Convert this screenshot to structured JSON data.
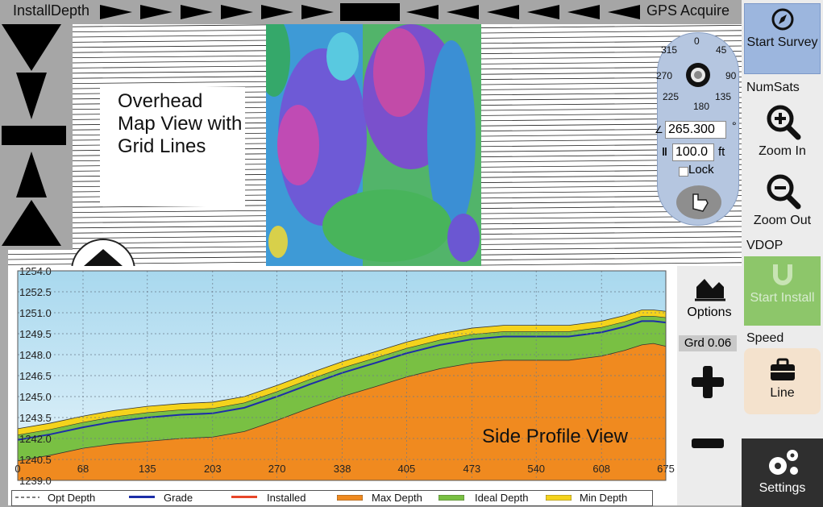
{
  "topbar": {
    "left_label": "InstallDepth",
    "right_label": "GPS Acquire"
  },
  "overhead": {
    "label": "Overhead Map View with Grid Lines"
  },
  "compass": {
    "degrees": {
      "n": "0",
      "ne": "45",
      "e": "90",
      "se": "135",
      "s": "180",
      "sw": "225",
      "w": "270",
      "nw": "315"
    },
    "heading_value": "265.300",
    "heading_unit": "°",
    "distance_value": "100.0",
    "distance_unit": "ft",
    "lock_label": "Lock"
  },
  "side": {
    "start_survey": "Start Survey",
    "numsats": "NumSats",
    "zoom_in": "Zoom In",
    "zoom_out": "Zoom Out",
    "vdop": "VDOP",
    "start_install": "Start Install",
    "speed": "Speed",
    "line": "Line",
    "settings": "Settings"
  },
  "profile_ctrl": {
    "options": "Options",
    "grade": "Grd 0.06"
  },
  "profile": {
    "label": "Side Profile View"
  },
  "chart_data": {
    "type": "area",
    "x_ticks": [
      0,
      68,
      135,
      203,
      270,
      338,
      405,
      473,
      540,
      608,
      675
    ],
    "y_ticks": [
      1239.0,
      1240.5,
      1242.0,
      1243.5,
      1245.0,
      1246.5,
      1248.0,
      1249.5,
      1251.0,
      1252.5,
      1254.0
    ],
    "xlim": [
      0,
      675
    ],
    "ylim": [
      1239.0,
      1254.0
    ],
    "x": [
      0,
      34,
      68,
      100,
      135,
      170,
      203,
      236,
      270,
      305,
      338,
      372,
      405,
      440,
      473,
      506,
      540,
      574,
      608,
      632,
      650,
      662,
      675
    ],
    "series": [
      {
        "name": "Max Depth",
        "color": "#f08a1f",
        "values": [
          1240.4,
          1240.8,
          1241.3,
          1241.6,
          1241.8,
          1242.0,
          1242.1,
          1242.5,
          1243.3,
          1244.2,
          1245.0,
          1245.7,
          1246.4,
          1247.0,
          1247.4,
          1247.6,
          1247.6,
          1247.6,
          1247.9,
          1248.3,
          1248.7,
          1248.8,
          1248.6
        ]
      },
      {
        "name": "Grade",
        "color": "#1c2ea8",
        "values": [
          1241.9,
          1242.3,
          1242.8,
          1243.2,
          1243.5,
          1243.7,
          1243.8,
          1244.2,
          1245.0,
          1245.9,
          1246.7,
          1247.4,
          1248.1,
          1248.7,
          1249.1,
          1249.3,
          1249.3,
          1249.3,
          1249.6,
          1250.0,
          1250.4,
          1250.4,
          1250.3
        ]
      },
      {
        "name": "Min Depth",
        "color": "#f5d31c",
        "values": [
          1242.7,
          1243.1,
          1243.6,
          1244.0,
          1244.3,
          1244.5,
          1244.6,
          1245.0,
          1245.8,
          1246.7,
          1247.5,
          1248.2,
          1248.9,
          1249.5,
          1249.9,
          1250.1,
          1250.1,
          1250.1,
          1250.4,
          1250.8,
          1251.2,
          1251.2,
          1251.1
        ]
      }
    ],
    "legend": [
      "Opt Depth",
      "Grade",
      "Installed",
      "Max Depth",
      "Ideal Depth",
      "Min Depth"
    ],
    "legend_colors": [
      "#555555",
      "#1c2ea8",
      "#e8462a",
      "#f08a1f",
      "#79c043",
      "#f5d31c"
    ]
  }
}
